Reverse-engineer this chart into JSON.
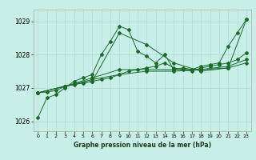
{
  "title": "Graphe pression niveau de la mer (hPa)",
  "background_color": "#c8eee8",
  "grid_color": "#b8dcd6",
  "line_color": "#1a6b2a",
  "xlim": [
    -0.5,
    23.5
  ],
  "ylim": [
    1025.7,
    1029.35
  ],
  "yticks": [
    1026,
    1027,
    1028,
    1029
  ],
  "xticks": [
    0,
    1,
    2,
    3,
    4,
    5,
    6,
    7,
    8,
    9,
    10,
    11,
    12,
    13,
    14,
    15,
    16,
    17,
    18,
    19,
    20,
    21,
    22,
    23
  ],
  "series": [
    {
      "x": [
        0,
        1,
        2,
        3,
        4,
        5,
        6,
        7,
        8,
        9,
        10,
        11,
        12,
        13,
        14,
        15,
        16,
        17,
        18,
        19,
        20,
        21,
        22,
        23
      ],
      "y": [
        1026.1,
        1026.7,
        1026.8,
        1027.0,
        1027.2,
        1027.3,
        1027.4,
        1028.0,
        1028.4,
        1028.85,
        1028.75,
        1028.1,
        1027.95,
        1027.75,
        1028.0,
        1027.55,
        1027.6,
        1027.55,
        1027.65,
        1027.7,
        1027.75,
        1028.25,
        1028.65,
        1029.05
      ]
    },
    {
      "x": [
        0,
        1,
        2,
        3,
        4,
        5,
        6,
        7,
        8,
        9,
        10,
        11,
        12,
        13,
        14,
        15,
        16,
        17,
        18,
        19,
        20,
        21,
        22,
        23
      ],
      "y": [
        1026.85,
        1026.88,
        1026.92,
        1027.05,
        1027.1,
        1027.15,
        1027.2,
        1027.25,
        1027.3,
        1027.4,
        1027.5,
        1027.55,
        1027.6,
        1027.65,
        1027.75,
        1027.6,
        1027.55,
        1027.5,
        1027.6,
        1027.65,
        1027.7,
        1027.75,
        1027.85,
        1028.05
      ]
    },
    {
      "x": [
        0,
        3,
        6,
        9,
        12,
        15,
        18,
        21,
        23
      ],
      "y": [
        1026.85,
        1027.05,
        1027.2,
        1028.65,
        1028.3,
        1027.75,
        1027.5,
        1027.6,
        1029.05
      ]
    },
    {
      "x": [
        0,
        3,
        6,
        9,
        12,
        15,
        18,
        21,
        23
      ],
      "y": [
        1026.85,
        1027.05,
        1027.3,
        1027.55,
        1027.55,
        1027.55,
        1027.55,
        1027.65,
        1027.85
      ]
    },
    {
      "x": [
        0,
        3,
        6,
        9,
        12,
        15,
        18,
        21,
        23
      ],
      "y": [
        1026.85,
        1027.05,
        1027.25,
        1027.4,
        1027.5,
        1027.5,
        1027.55,
        1027.6,
        1027.75
      ]
    }
  ]
}
